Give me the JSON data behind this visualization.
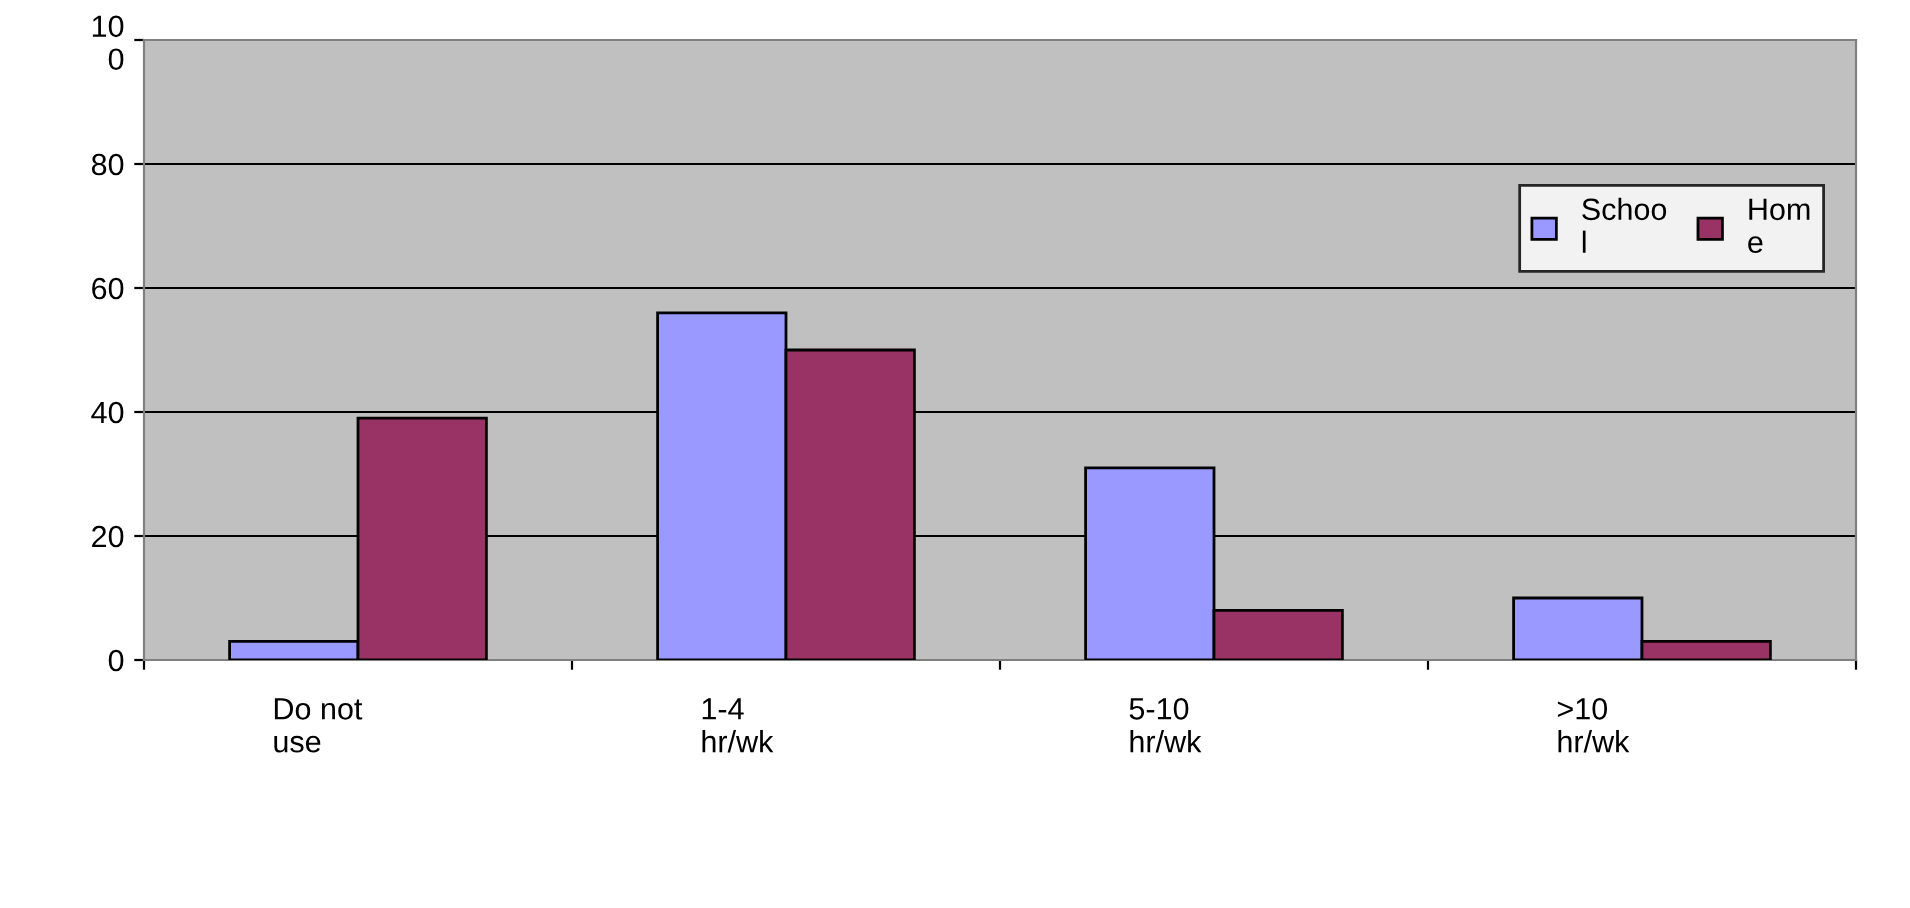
{
  "chart_data": {
    "type": "bar",
    "categories": [
      "Do not\nuse",
      "1-4\nhr/wk",
      "5-10\nhr/wk",
      ">10\nhr/wk"
    ],
    "series": [
      {
        "name": "Schoo\nl",
        "color": "#9999ff",
        "values": [
          3,
          56,
          31,
          10
        ]
      },
      {
        "name": "Hom\ne",
        "color": "#993366",
        "values": [
          39,
          50,
          8,
          3
        ]
      }
    ],
    "ylim": [
      0,
      100
    ],
    "yticks": [
      0,
      20,
      40,
      60,
      80,
      100
    ],
    "grid": "y",
    "legend": "top right"
  }
}
